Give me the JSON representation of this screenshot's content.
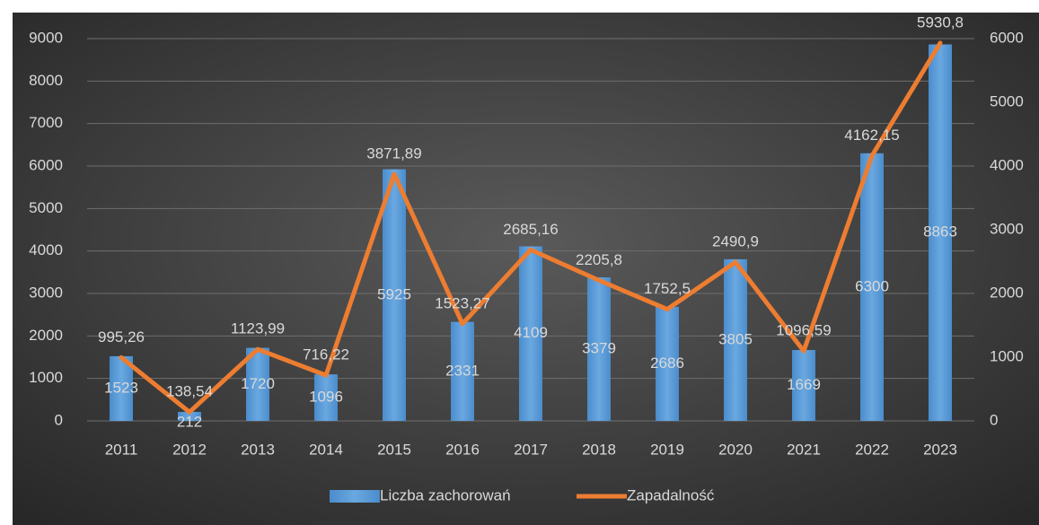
{
  "chart_data": {
    "type": "bar",
    "categories": [
      "2011",
      "2012",
      "2013",
      "2014",
      "2015",
      "2016",
      "2017",
      "2018",
      "2019",
      "2020",
      "2021",
      "2022",
      "2023"
    ],
    "series": [
      {
        "name": "Liczba zachorowań",
        "type": "bar",
        "color": "#5b9bd5",
        "values": [
          1523,
          212,
          1720,
          1096,
          5925,
          2331,
          4109,
          3379,
          2686,
          3805,
          1669,
          6300,
          8863
        ]
      },
      {
        "name": "Zapadalność",
        "type": "line",
        "axis": "y2",
        "color": "#ed7d31",
        "values": [
          995.26,
          138.54,
          1123.99,
          716.22,
          3871.89,
          1523.27,
          2685.16,
          2205.8,
          1752.5,
          2490.9,
          1096.59,
          4162.15,
          5930.8
        ],
        "value_labels": [
          "995,26",
          "138,54",
          "1123,99",
          "716,22",
          "3871,89",
          "1523,27",
          "2685,16",
          "2205,8",
          "1752,5",
          "2490,9",
          "1096,59",
          "4162,15",
          "5930,8"
        ]
      }
    ],
    "ylim": [
      0,
      9000
    ],
    "yticks": [
      0,
      1000,
      2000,
      3000,
      4000,
      5000,
      6000,
      7000,
      8000,
      9000
    ],
    "y2lim": [
      0,
      6000
    ],
    "y2ticks": [
      0,
      1000,
      2000,
      3000,
      4000,
      5000,
      6000
    ],
    "grid": true,
    "legend": "bottom"
  }
}
